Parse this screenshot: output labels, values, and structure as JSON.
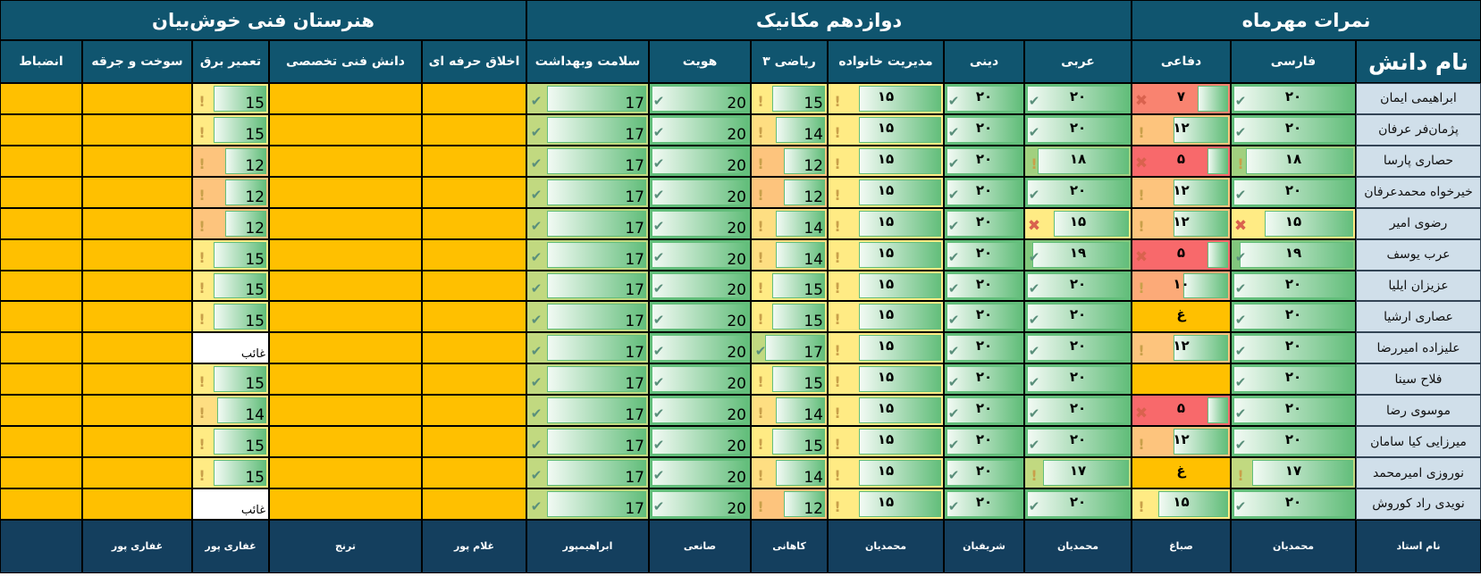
{
  "groups": [
    {
      "label": "نمرات مهرماه",
      "span": 3
    },
    {
      "label": "دوازدهم مکانیک",
      "span": 6
    },
    {
      "label": "هنرستان فنی خوش‌بیان",
      "span": 5
    }
  ],
  "name_column": {
    "header": "نام دانش",
    "footer": "نام استاد",
    "students": [
      "ابراهیمی ایمان",
      "پژمان‌فر عرفان",
      "حصاری پارسا",
      "خیرخواه محمدعرفان",
      "رضوی امیر",
      "عرب یوسف",
      "عزیزان ایلیا",
      "عصاری ارشیا",
      "علیزاده امیررضا",
      "فلاح سینا",
      "موسوی رضا",
      "میرزایی کیا سامان",
      "نوروزی امیرمحمد",
      "نویدی راد کوروش"
    ]
  },
  "colors": {
    "header": "#10556f",
    "footer": "#143f5e",
    "name_bg": "#d0dfea",
    "empty_bg": "#ffc000",
    "bar": "#63be7b",
    "scale_low": "#f8696b",
    "scale_mid": "#ffeb84",
    "scale_high": "#63be7b"
  },
  "color_scale": {
    "min": 5,
    "mid": 15,
    "max": 20
  },
  "bar_max": 20,
  "columns": [
    {
      "header": "فارسی",
      "teacher": "محمدیان",
      "digits": "fa",
      "cells": [
        [
          "۲۰",
          "check"
        ],
        [
          "۲۰",
          "check"
        ],
        [
          "۱۸",
          "warn"
        ],
        [
          "۲۰",
          "check"
        ],
        [
          "۱۵",
          "cross"
        ],
        [
          "۱۹",
          "check"
        ],
        [
          "۲۰",
          "check"
        ],
        [
          "۲۰",
          "check"
        ],
        [
          "۲۰",
          "check"
        ],
        [
          "۲۰",
          "check"
        ],
        [
          "۲۰",
          "check"
        ],
        [
          "۲۰",
          "check"
        ],
        [
          "۱۷",
          "warn"
        ],
        [
          "۲۰",
          "check"
        ]
      ]
    },
    {
      "header": "دفاعی",
      "teacher": "صباغ",
      "digits": "fa",
      "cells": [
        [
          "۷",
          "cross"
        ],
        [
          "۱۲",
          "warn"
        ],
        [
          "۵",
          "cross"
        ],
        [
          "۱۲",
          "warn"
        ],
        [
          "۱۲",
          "warn"
        ],
        [
          "۵",
          "cross"
        ],
        [
          "۱۰",
          "warn"
        ],
        [
          "غ",
          ""
        ],
        [
          "۱۲",
          "warn"
        ],
        [
          "",
          ""
        ],
        [
          "۵",
          "cross"
        ],
        [
          "۱۲",
          "warn"
        ],
        [
          "غ",
          ""
        ],
        [
          "۱۵",
          "warn"
        ]
      ]
    },
    {
      "header": "عربی",
      "teacher": "محمدیان",
      "digits": "fa",
      "cells": [
        [
          "۲۰",
          "check"
        ],
        [
          "۲۰",
          "check"
        ],
        [
          "۱۸",
          "warn"
        ],
        [
          "۲۰",
          "check"
        ],
        [
          "۱۵",
          "cross"
        ],
        [
          "۱۹",
          "check"
        ],
        [
          "۲۰",
          "check"
        ],
        [
          "۲۰",
          "check"
        ],
        [
          "۲۰",
          "check"
        ],
        [
          "۲۰",
          "check"
        ],
        [
          "۲۰",
          "check"
        ],
        [
          "۲۰",
          "check"
        ],
        [
          "۱۷",
          "warn"
        ],
        [
          "۲۰",
          "check"
        ]
      ]
    },
    {
      "header": "دینی",
      "teacher": "شریفیان",
      "digits": "fa",
      "cells": [
        [
          "۲۰",
          "check"
        ],
        [
          "۲۰",
          "check"
        ],
        [
          "۲۰",
          "check"
        ],
        [
          "۲۰",
          "check"
        ],
        [
          "۲۰",
          "check"
        ],
        [
          "۲۰",
          "check"
        ],
        [
          "۲۰",
          "check"
        ],
        [
          "۲۰",
          "check"
        ],
        [
          "۲۰",
          "check"
        ],
        [
          "۲۰",
          "check"
        ],
        [
          "۲۰",
          "check"
        ],
        [
          "۲۰",
          "check"
        ],
        [
          "۲۰",
          "check"
        ],
        [
          "۲۰",
          "check"
        ]
      ]
    },
    {
      "header": "مدیریت خانواده",
      "teacher": "محمدیان",
      "digits": "fa",
      "cells": [
        [
          "۱۵",
          "warn"
        ],
        [
          "۱۵",
          "warn"
        ],
        [
          "۱۵",
          "warn"
        ],
        [
          "۱۵",
          "warn"
        ],
        [
          "۱۵",
          "warn"
        ],
        [
          "۱۵",
          "warn"
        ],
        [
          "۱۵",
          "warn"
        ],
        [
          "۱۵",
          "warn"
        ],
        [
          "۱۵",
          "warn"
        ],
        [
          "۱۵",
          "warn"
        ],
        [
          "۱۵",
          "warn"
        ],
        [
          "۱۵",
          "warn"
        ],
        [
          "۱۵",
          "warn"
        ],
        [
          "۱۵",
          "warn"
        ]
      ]
    },
    {
      "header": "ریاضی ۳",
      "teacher": "کاهانی",
      "digits": "la",
      "cells": [
        [
          "15",
          "warn"
        ],
        [
          "14",
          "warn"
        ],
        [
          "12",
          "warn"
        ],
        [
          "12",
          "warn"
        ],
        [
          "14",
          "warn"
        ],
        [
          "14",
          "warn"
        ],
        [
          "15",
          "warn"
        ],
        [
          "15",
          "warn"
        ],
        [
          "17",
          "check"
        ],
        [
          "15",
          "warn"
        ],
        [
          "14",
          "warn"
        ],
        [
          "15",
          "warn"
        ],
        [
          "14",
          "warn"
        ],
        [
          "12",
          "warn"
        ]
      ]
    },
    {
      "header": "هویت",
      "teacher": "صانعی",
      "digits": "la",
      "cells": [
        [
          "20",
          "check"
        ],
        [
          "20",
          "check"
        ],
        [
          "20",
          "check"
        ],
        [
          "20",
          "check"
        ],
        [
          "20",
          "check"
        ],
        [
          "20",
          "check"
        ],
        [
          "20",
          "check"
        ],
        [
          "20",
          "check"
        ],
        [
          "20",
          "check"
        ],
        [
          "20",
          "check"
        ],
        [
          "20",
          "check"
        ],
        [
          "20",
          "check"
        ],
        [
          "20",
          "check"
        ],
        [
          "20",
          "check"
        ]
      ]
    },
    {
      "header": "سلامت وبهداشت",
      "teacher": "ابراهیمپور",
      "digits": "la",
      "cells": [
        [
          "17",
          "check"
        ],
        [
          "17",
          "check"
        ],
        [
          "17",
          "check"
        ],
        [
          "17",
          "check"
        ],
        [
          "17",
          "check"
        ],
        [
          "17",
          "check"
        ],
        [
          "17",
          "check"
        ],
        [
          "17",
          "check"
        ],
        [
          "17",
          "check"
        ],
        [
          "17",
          "check"
        ],
        [
          "17",
          "check"
        ],
        [
          "17",
          "check"
        ],
        [
          "17",
          "check"
        ],
        [
          "17",
          "check"
        ]
      ]
    },
    {
      "header": "اخلاق حرفه ای",
      "teacher": "غلام پور",
      "digits": "la",
      "cells": []
    },
    {
      "header": "دانش فنی تخصصی",
      "teacher": "ترنج",
      "digits": "la",
      "cells": []
    },
    {
      "header": "تعمیر برق",
      "teacher": "غفاری پور",
      "digits": "la",
      "cells": [
        [
          "15",
          "warn"
        ],
        [
          "15",
          "warn"
        ],
        [
          "12",
          "warn"
        ],
        [
          "12",
          "warn"
        ],
        [
          "12",
          "warn"
        ],
        [
          "15",
          "warn"
        ],
        [
          "15",
          "warn"
        ],
        [
          "15",
          "warn"
        ],
        [
          "غائب",
          ""
        ],
        [
          "15",
          "warn"
        ],
        [
          "14",
          "warn"
        ],
        [
          "15",
          "warn"
        ],
        [
          "15",
          "warn"
        ],
        [
          "غائب",
          ""
        ]
      ]
    },
    {
      "header": "سوخت و جرقه",
      "teacher": "غفاری پور",
      "digits": "la",
      "cells": []
    },
    {
      "header": "انضباط",
      "teacher": "",
      "digits": "la",
      "cells": []
    }
  ]
}
